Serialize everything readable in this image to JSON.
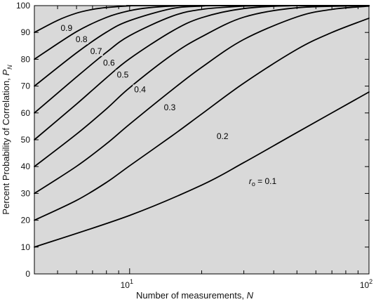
{
  "chart_data": {
    "type": "line",
    "xscale": "log",
    "xlim": [
      4,
      100
    ],
    "ylim": [
      0,
      100
    ],
    "grid": false,
    "legend": "none",
    "plot_background": "#d9d9d9",
    "line_color": "#000000",
    "xlabel": "Number of measurements, N",
    "ylabel": "Percent Probability of Correlation, P_N",
    "ylabel_main": "Percent Probability of Correlation, P",
    "ylabel_sub": "N",
    "x_tick_labels": [
      {
        "value": 10,
        "base": "10",
        "exp": "1"
      },
      {
        "value": 100,
        "base": "10",
        "exp": "2"
      }
    ],
    "y_ticks": [
      0,
      10,
      20,
      30,
      40,
      50,
      60,
      70,
      80,
      90,
      100
    ],
    "y_tick_labels": [
      "0",
      "10",
      "20",
      "30",
      "40",
      "50",
      "60",
      "70",
      "80",
      "90",
      "100"
    ],
    "series": [
      {
        "label": "0.1",
        "x": [
          4,
          10,
          20,
          30,
          50,
          100
        ],
        "y": [
          10,
          21.8,
          33.1,
          41.5,
          52.7,
          67.8
        ]
      },
      {
        "label": "0.2",
        "x": [
          4,
          6,
          8,
          10,
          15,
          20,
          30,
          50,
          70,
          100
        ],
        "y": [
          20,
          27.4,
          34.1,
          40.3,
          51.4,
          59.6,
          71.1,
          83.7,
          90.0,
          95.3
        ]
      },
      {
        "label": "0.3",
        "x": [
          4,
          6,
          8,
          10,
          15,
          20,
          30,
          50,
          70,
          100
        ],
        "y": [
          30,
          40.1,
          48.5,
          55.8,
          68.5,
          77.0,
          87.4,
          95.8,
          98.6,
          99.8
        ]
      },
      {
        "label": "0.4",
        "x": [
          4,
          6,
          8,
          10,
          15,
          20,
          30,
          50,
          100
        ],
        "y": [
          40,
          52.1,
          61.5,
          69.4,
          81.6,
          88.4,
          95.7,
          99.2,
          100
        ]
      },
      {
        "label": "0.5",
        "x": [
          4,
          6,
          8,
          10,
          15,
          20,
          30,
          50
        ],
        "y": [
          50,
          63.3,
          73.1,
          80.2,
          90.4,
          95.5,
          98.9,
          100
        ]
      },
      {
        "label": "0.6",
        "x": [
          4,
          6,
          8,
          10,
          15,
          20,
          30,
          40
        ],
        "y": [
          60,
          73.4,
          82.6,
          88.8,
          96.0,
          98.6,
          99.8,
          100
        ]
      },
      {
        "label": "0.7",
        "x": [
          4,
          6,
          8,
          10,
          15,
          20,
          25
        ],
        "y": [
          70,
          82.4,
          90.1,
          94.4,
          98.9,
          99.8,
          100
        ]
      },
      {
        "label": "0.8",
        "x": [
          4,
          6,
          8,
          10,
          12,
          15,
          20
        ],
        "y": [
          80,
          90.3,
          95.6,
          98.1,
          99.2,
          99.8,
          100
        ]
      },
      {
        "label": "0.9",
        "x": [
          4,
          5,
          6,
          7,
          8,
          10,
          12
        ],
        "y": [
          90,
          94.5,
          97.2,
          98.6,
          99.3,
          99.9,
          100
        ]
      }
    ],
    "annotations": [
      {
        "text": "0.9",
        "x": 5.15,
        "y": 90.6
      },
      {
        "text": "0.8",
        "x": 5.95,
        "y": 86.4
      },
      {
        "text": "0.7",
        "x": 6.85,
        "y": 82.0
      },
      {
        "text": "0.6",
        "x": 7.75,
        "y": 77.6
      },
      {
        "text": "0.5",
        "x": 8.85,
        "y": 73.2
      },
      {
        "text": "0.4",
        "x": 10.45,
        "y": 67.7
      },
      {
        "text": "0.3",
        "x": 13.9,
        "y": 61.0
      },
      {
        "text": "0.2",
        "x": 23.1,
        "y": 50.2
      },
      {
        "text": "r",
        "sub": "o",
        "suffix": " = 0.1",
        "x": 31.5,
        "y": 33.5
      }
    ]
  }
}
